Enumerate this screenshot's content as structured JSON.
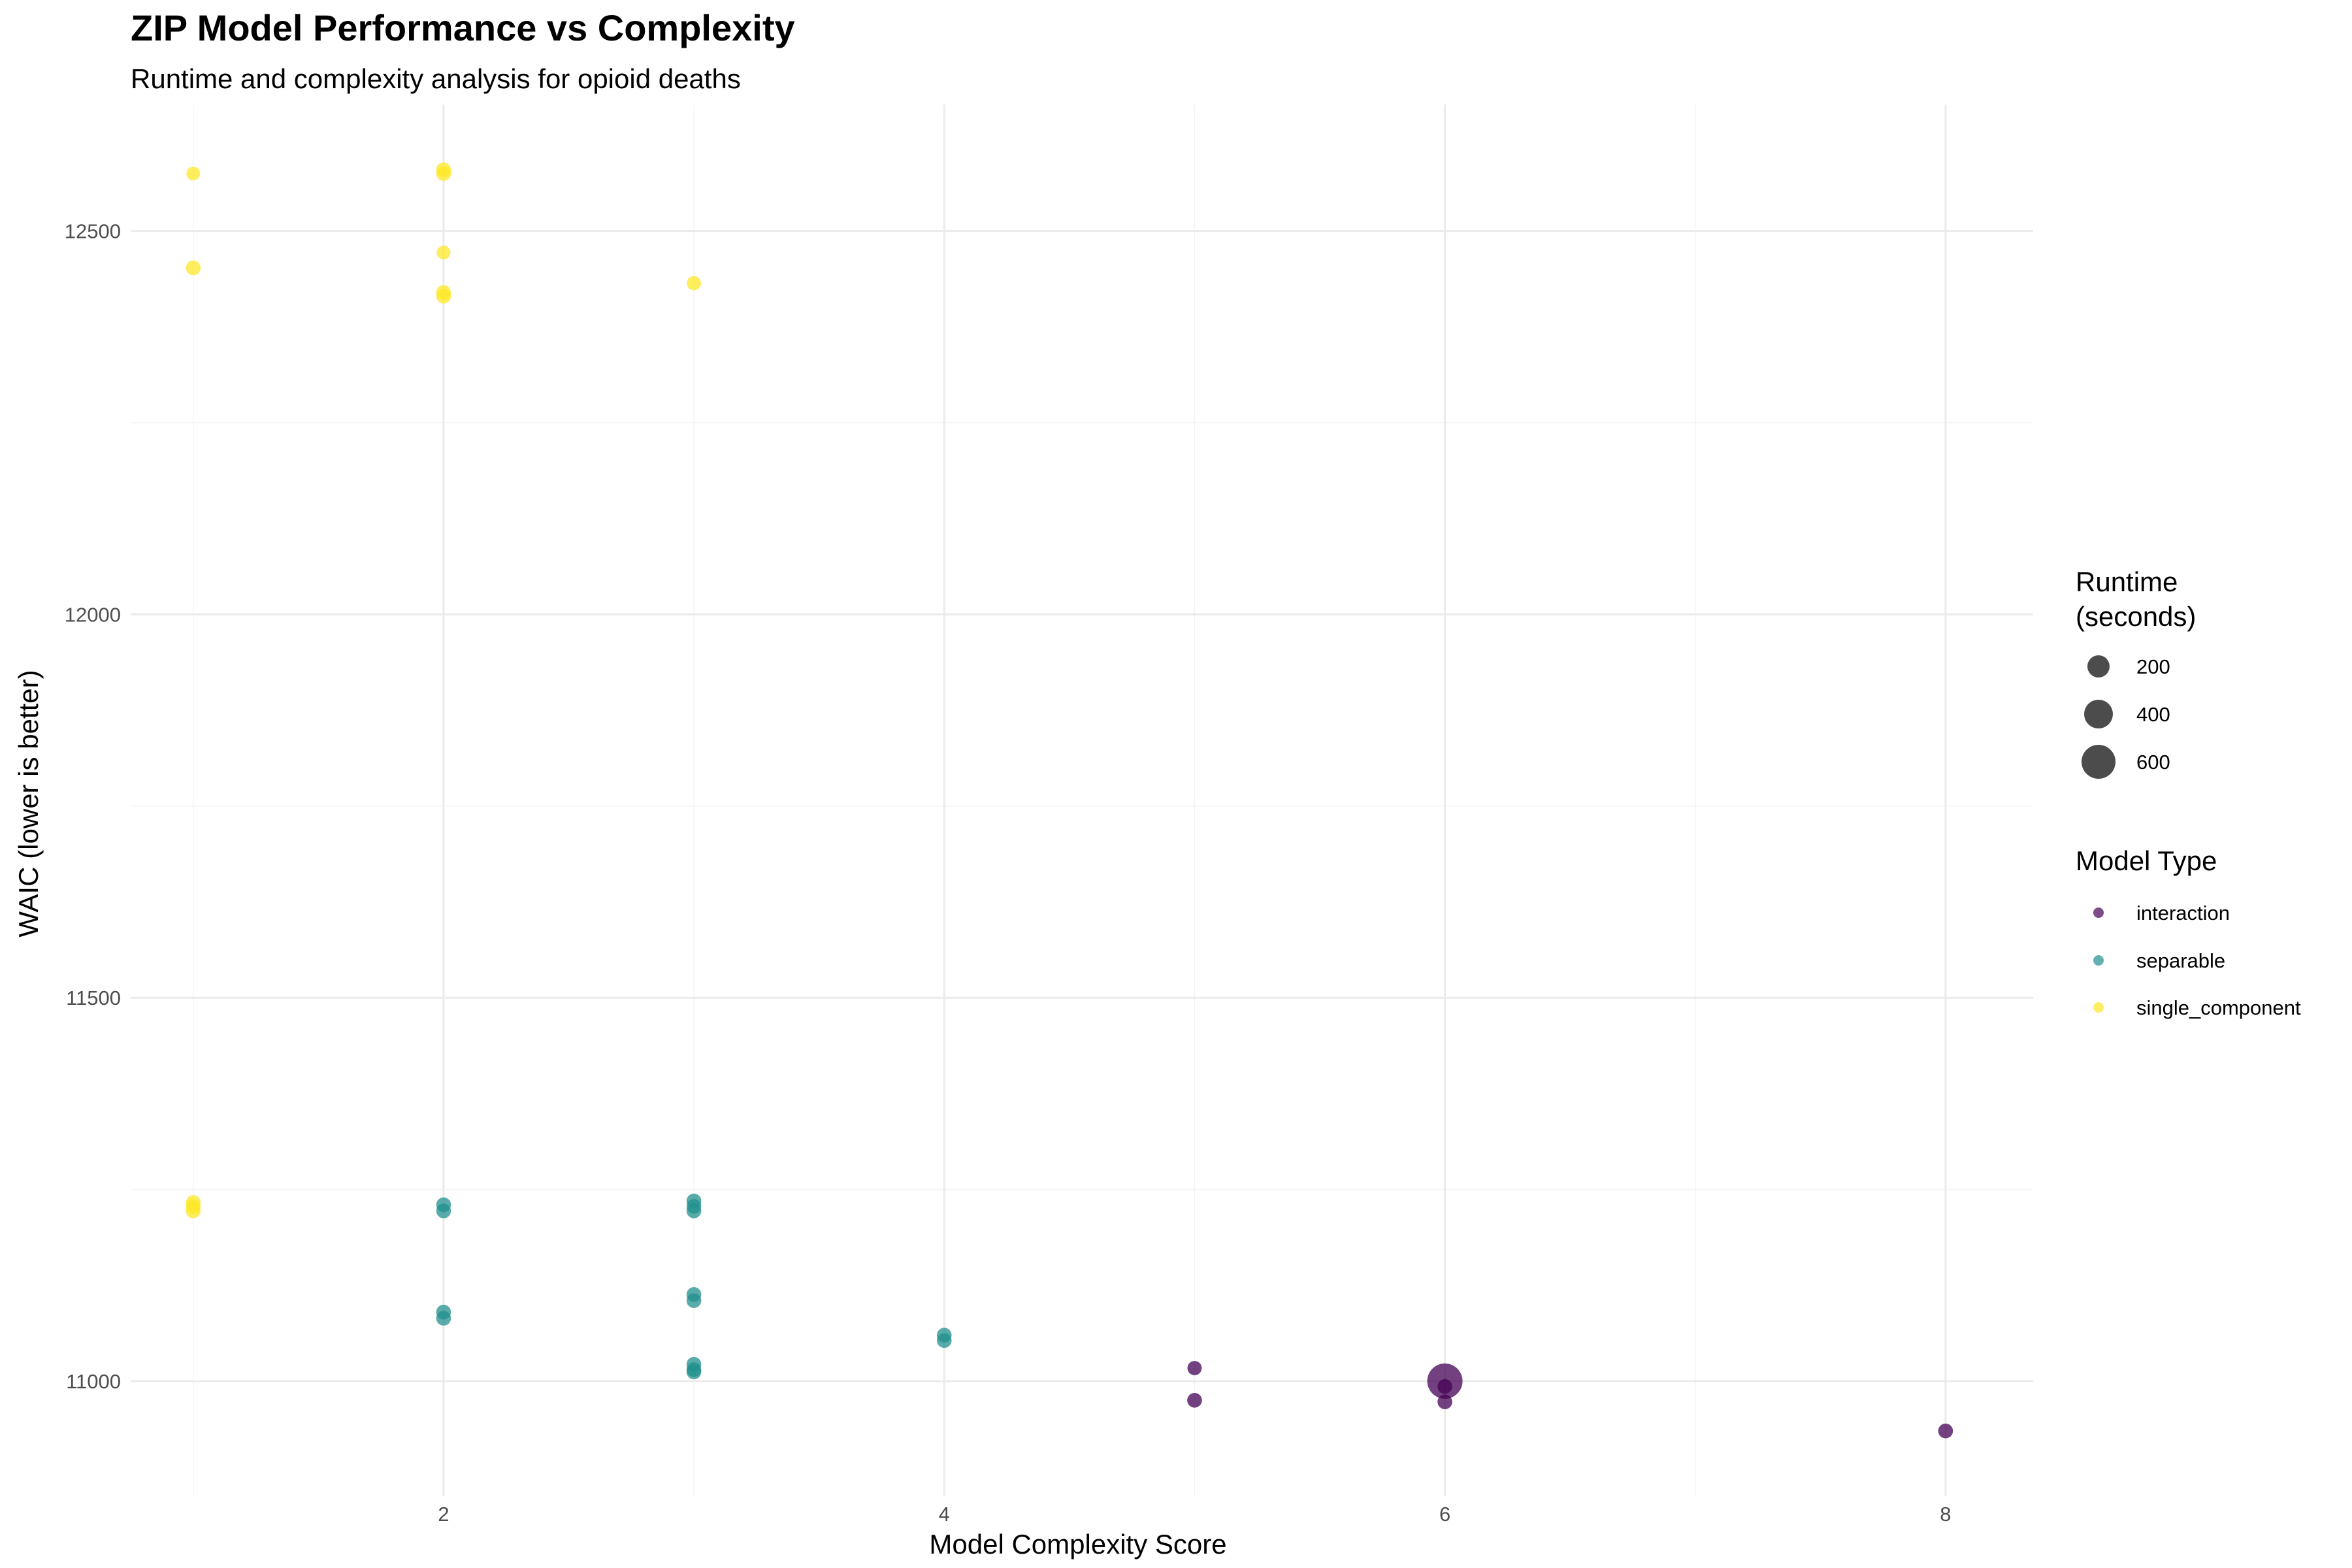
{
  "chart_data": {
    "type": "scatter",
    "title": "ZIP Model Performance vs Complexity",
    "subtitle": "Runtime and complexity analysis for opioid deaths",
    "xlabel": "Model Complexity Score",
    "ylabel": "WAIC (lower is better)",
    "xlim": [
      0.75,
      8.35
    ],
    "ylim": [
      10850,
      12665
    ],
    "x_ticks": [
      2,
      4,
      6,
      8
    ],
    "x_tick_labels": [
      "2",
      "4",
      "6",
      "8"
    ],
    "y_ticks": [
      11000,
      11500,
      12000,
      12500
    ],
    "y_tick_labels": [
      "11000",
      "11500",
      "12000",
      "12500"
    ],
    "grid": true,
    "legend_position": "right",
    "size_legend": {
      "title_lines": [
        "Runtime",
        "(seconds)"
      ],
      "entries": [
        {
          "label": "200",
          "value": 200
        },
        {
          "label": "400",
          "value": 400
        },
        {
          "label": "600",
          "value": 600
        }
      ]
    },
    "color_legend": {
      "title": "Model Type",
      "entries": [
        {
          "label": "interaction",
          "color": "#440154"
        },
        {
          "label": "separable",
          "color": "#21908C"
        },
        {
          "label": "single_component",
          "color": "#FDE725"
        }
      ]
    },
    "series": [
      {
        "name": "single_component",
        "color": "#FDE725",
        "points": [
          {
            "x": 1,
            "y": 12575,
            "runtime": 20
          },
          {
            "x": 1,
            "y": 12452,
            "runtime": 30
          },
          {
            "x": 1,
            "y": 11233,
            "runtime": 30
          },
          {
            "x": 1,
            "y": 11228,
            "runtime": 30
          },
          {
            "x": 1,
            "y": 11222,
            "runtime": 30
          },
          {
            "x": 2,
            "y": 12580,
            "runtime": 30
          },
          {
            "x": 2,
            "y": 12575,
            "runtime": 30
          },
          {
            "x": 2,
            "y": 12472,
            "runtime": 20
          },
          {
            "x": 2,
            "y": 12420,
            "runtime": 30
          },
          {
            "x": 2,
            "y": 12415,
            "runtime": 30
          },
          {
            "x": 3,
            "y": 12432,
            "runtime": 25
          }
        ]
      },
      {
        "name": "separable",
        "color": "#21908C",
        "points": [
          {
            "x": 2,
            "y": 11230,
            "runtime": 30
          },
          {
            "x": 2,
            "y": 11222,
            "runtime": 30
          },
          {
            "x": 2,
            "y": 11090,
            "runtime": 30
          },
          {
            "x": 2,
            "y": 11082,
            "runtime": 30
          },
          {
            "x": 3,
            "y": 11235,
            "runtime": 30
          },
          {
            "x": 3,
            "y": 11228,
            "runtime": 30
          },
          {
            "x": 3,
            "y": 11222,
            "runtime": 30
          },
          {
            "x": 3,
            "y": 11113,
            "runtime": 30
          },
          {
            "x": 3,
            "y": 11105,
            "runtime": 30
          },
          {
            "x": 3,
            "y": 11022,
            "runtime": 30
          },
          {
            "x": 3,
            "y": 11015,
            "runtime": 30
          },
          {
            "x": 3,
            "y": 11012,
            "runtime": 30
          },
          {
            "x": 4,
            "y": 11060,
            "runtime": 30
          },
          {
            "x": 4,
            "y": 11053,
            "runtime": 30
          }
        ]
      },
      {
        "name": "interaction",
        "color": "#440154",
        "points": [
          {
            "x": 5,
            "y": 11017,
            "runtime": 25
          },
          {
            "x": 5,
            "y": 10975,
            "runtime": 30
          },
          {
            "x": 6,
            "y": 11000,
            "runtime": 650
          },
          {
            "x": 6,
            "y": 10993,
            "runtime": 30
          },
          {
            "x": 6,
            "y": 10973,
            "runtime": 30
          },
          {
            "x": 8,
            "y": 10935,
            "runtime": 30
          }
        ]
      }
    ]
  }
}
